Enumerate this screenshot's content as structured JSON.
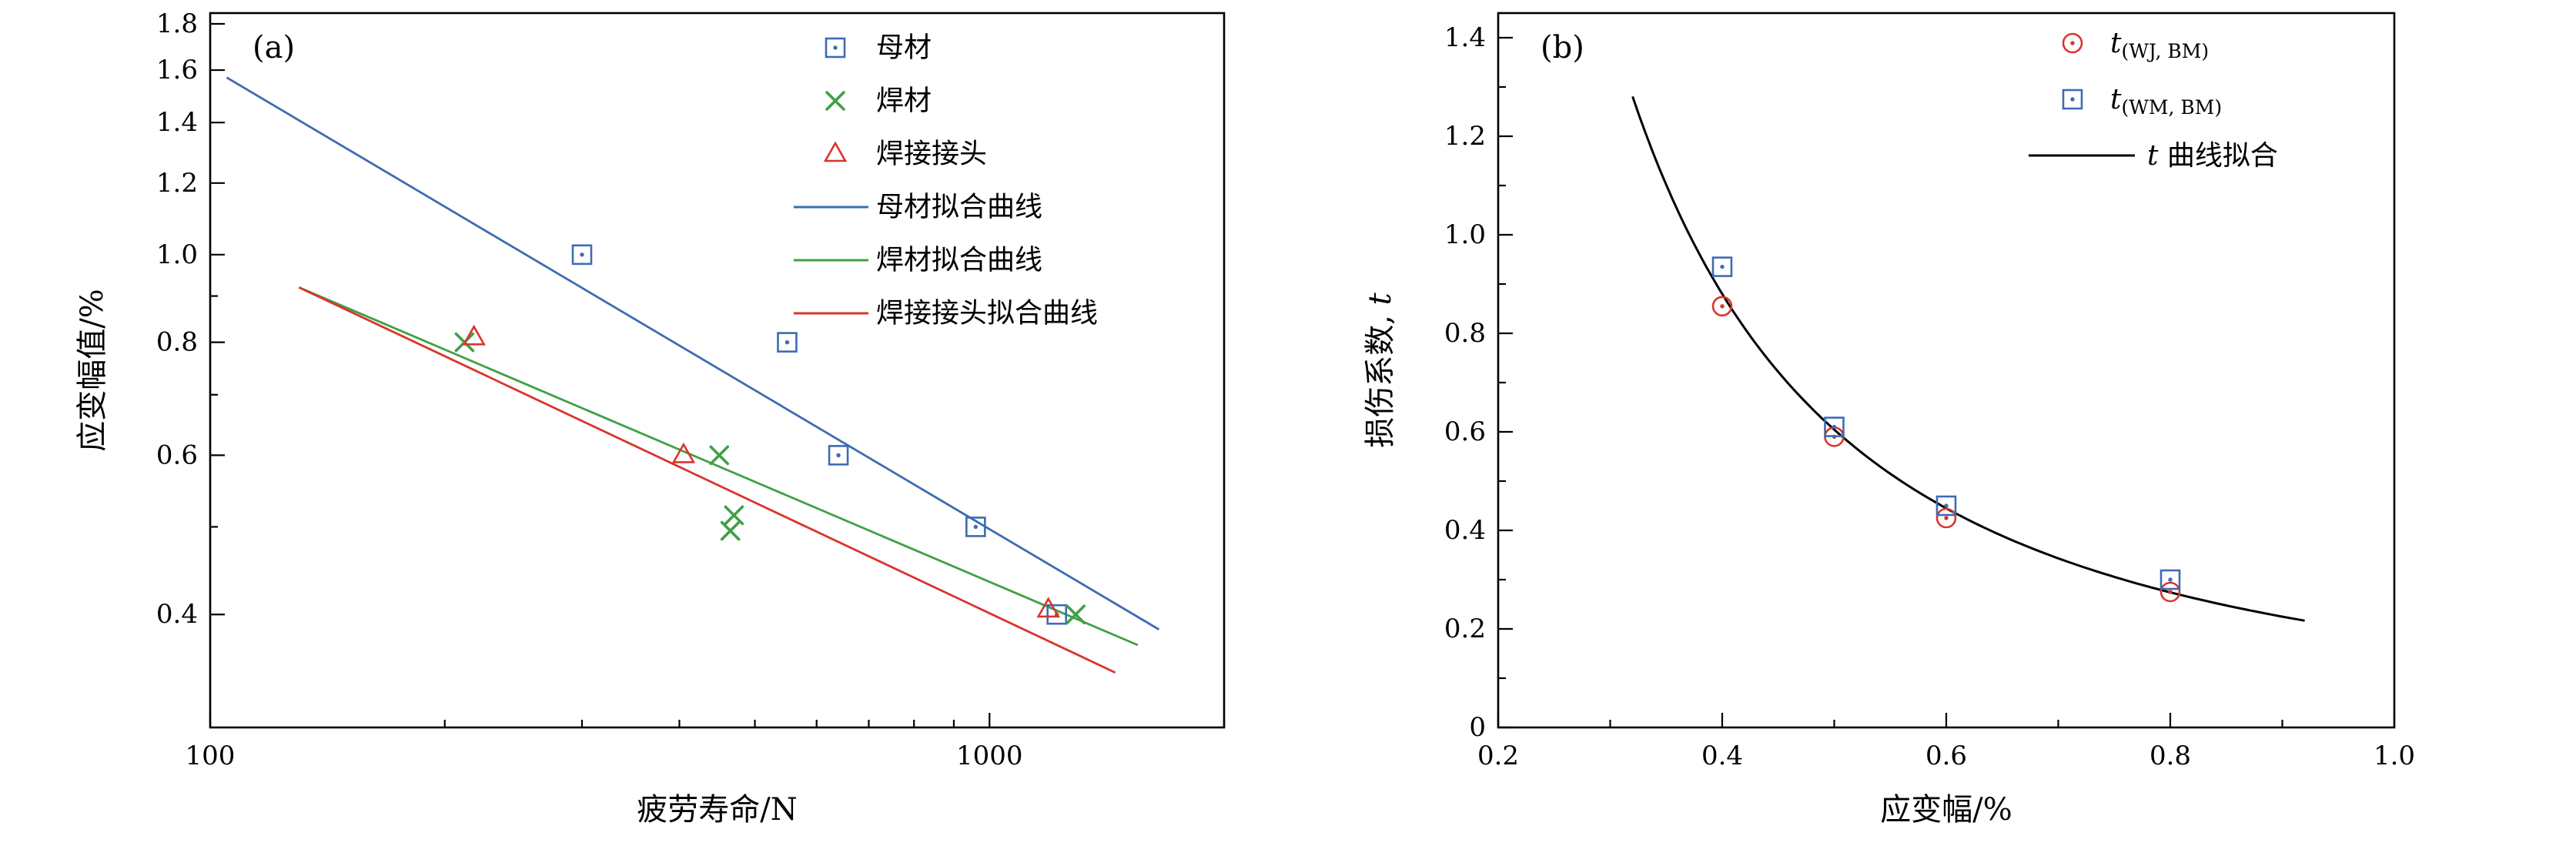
{
  "page": {
    "background": "#ffffff"
  },
  "colors": {
    "blue": "#3d6cb3",
    "green": "#3fa046",
    "red": "#d9352c",
    "black": "#000000"
  },
  "chart_data": [
    {
      "id": "a",
      "type": "scatter",
      "panel_label": "(a)",
      "xlabel": "疲劳寿命/N",
      "ylabel": {
        "text": "应变幅值/%",
        "italic_suffix": ""
      },
      "x_scale": "log",
      "y_scale": "log",
      "xlim": [
        100,
        2000
      ],
      "ylim": [
        0.3,
        1.85
      ],
      "x_ticks": {
        "values": [
          100,
          1000
        ],
        "labels": [
          "100",
          "1000"
        ],
        "minor": [
          200,
          300,
          400,
          500,
          600,
          700,
          800,
          900,
          2000
        ]
      },
      "y_ticks": {
        "values": [
          0.4,
          0.6,
          0.8,
          1.0,
          1.2,
          1.4,
          1.6,
          1.8
        ],
        "labels": [
          "0.4",
          "0.6",
          "0.8",
          "1.0",
          "1.2",
          "1.4",
          "1.6",
          "1.8"
        ],
        "minor": [
          0.5,
          0.7,
          0.9
        ]
      },
      "grid": false,
      "series": [
        {
          "name": "母材",
          "marker": "square-dot",
          "color": "#3d6cb3",
          "points": [
            [
              300,
              1.0
            ],
            [
              550,
              0.8
            ],
            [
              640,
              0.6
            ],
            [
              960,
              0.5
            ],
            [
              1220,
              0.4
            ]
          ]
        },
        {
          "name": "焊材",
          "marker": "x",
          "color": "#3fa046",
          "points": [
            [
              212,
              0.8
            ],
            [
              450,
              0.6
            ],
            [
              470,
              0.515
            ],
            [
              465,
              0.495
            ],
            [
              1290,
              0.4
            ]
          ]
        },
        {
          "name": "焊接接头",
          "marker": "triangle",
          "color": "#d9352c",
          "points": [
            [
              218,
              0.81
            ],
            [
              405,
              0.6
            ],
            [
              1190,
              0.405
            ]
          ]
        }
      ],
      "fit_lines": [
        {
          "name": "母材拟合曲线",
          "color": "#3d6cb3",
          "from": [
            105,
            1.57
          ],
          "to": [
            1650,
            0.385
          ]
        },
        {
          "name": "焊材拟合曲线",
          "color": "#3fa046",
          "from": [
            130,
            0.92
          ],
          "to": [
            1550,
            0.37
          ]
        },
        {
          "name": "焊接接头拟合曲线",
          "color": "#d9352c",
          "from": [
            130,
            0.92
          ],
          "to": [
            1450,
            0.345
          ]
        }
      ],
      "legend": {
        "position": "top-center",
        "items": [
          {
            "type": "marker",
            "marker": "square-dot",
            "color": "#3d6cb3",
            "label": "母材"
          },
          {
            "type": "marker",
            "marker": "x",
            "color": "#3fa046",
            "label": "焊材"
          },
          {
            "type": "marker",
            "marker": "triangle",
            "color": "#d9352c",
            "label": "焊接接头"
          },
          {
            "type": "line",
            "color": "#3d6cb3",
            "label": "母材拟合曲线"
          },
          {
            "type": "line",
            "color": "#3fa046",
            "label": "焊材拟合曲线"
          },
          {
            "type": "line",
            "color": "#d9352c",
            "label": "焊接接头拟合曲线"
          }
        ]
      }
    },
    {
      "id": "b",
      "type": "scatter",
      "panel_label": "(b)",
      "xlabel": "应变幅/%",
      "ylabel": {
        "text": "损伤系数, ",
        "italic_suffix": "t"
      },
      "x_scale": "linear",
      "y_scale": "linear",
      "xlim": [
        0.2,
        1.0
      ],
      "ylim": [
        0,
        1.45
      ],
      "x_ticks": {
        "values": [
          0.2,
          0.4,
          0.6,
          0.8,
          1.0
        ],
        "labels": [
          "0.2",
          "0.4",
          "0.6",
          "0.8",
          "1.0"
        ],
        "minor": [
          0.3,
          0.5,
          0.7,
          0.9
        ]
      },
      "y_ticks": {
        "values": [
          0,
          0.2,
          0.4,
          0.6,
          0.8,
          1.0,
          1.2,
          1.4
        ],
        "labels": [
          "0",
          "0.2",
          "0.4",
          "0.6",
          "0.8",
          "1.0",
          "1.2",
          "1.4"
        ],
        "minor": [
          0.1,
          0.3,
          0.5,
          0.7,
          0.9,
          1.1,
          1.3
        ]
      },
      "grid": false,
      "series": [
        {
          "name": "t(WJ, BM)",
          "marker": "circle-dot",
          "color": "#d9352c",
          "points": [
            [
              0.4,
              0.855
            ],
            [
              0.5,
              0.59
            ],
            [
              0.6,
              0.425
            ],
            [
              0.8,
              0.275
            ]
          ]
        },
        {
          "name": "t(WM, BM)",
          "marker": "square-dot",
          "color": "#3d6cb3",
          "points": [
            [
              0.4,
              0.935
            ],
            [
              0.5,
              0.61
            ],
            [
              0.6,
              0.45
            ],
            [
              0.8,
              0.3
            ]
          ]
        }
      ],
      "fit_curve": {
        "name": "t 曲线拟合",
        "color": "#000000",
        "a": 0.1884,
        "b": -1.682,
        "x_range": [
          0.32,
          0.92
        ]
      },
      "legend": {
        "position": "top-right",
        "items": [
          {
            "type": "marker",
            "marker": "circle-dot",
            "color": "#d9352c",
            "label_main": "t",
            "label_sub": "(WJ, BM)"
          },
          {
            "type": "marker",
            "marker": "square-dot",
            "color": "#3d6cb3",
            "label_main": "t",
            "label_sub": "(WM, BM)"
          },
          {
            "type": "line",
            "color": "#000000",
            "label_main": "t",
            "label_tail": " 曲线拟合"
          }
        ]
      }
    }
  ]
}
